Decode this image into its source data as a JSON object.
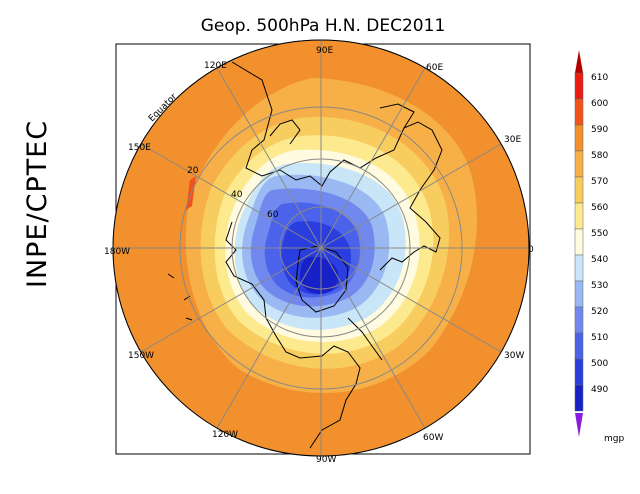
{
  "title": "Geop. 500hPa H.N. DEC2011",
  "agency": "INPE/CPTEC",
  "longitude_labels": [
    {
      "text": "90E",
      "lon": 90
    },
    {
      "text": "60E",
      "lon": 60
    },
    {
      "text": "30E",
      "lon": 30
    },
    {
      "text": "0",
      "lon": 0
    },
    {
      "text": "30W",
      "lon": -30
    },
    {
      "text": "60W",
      "lon": -60
    },
    {
      "text": "90W",
      "lon": -90
    },
    {
      "text": "120W",
      "lon": -120
    },
    {
      "text": "150W",
      "lon": -150
    },
    {
      "text": "180W",
      "lon": 180
    },
    {
      "text": "150E",
      "lon": 150
    },
    {
      "text": "120E",
      "lon": 120
    }
  ],
  "latitude_labels": [
    {
      "text": "Equator",
      "lat": 0
    },
    {
      "text": "20",
      "lat": 20
    },
    {
      "text": "40",
      "lat": 40
    },
    {
      "text": "60",
      "lat": 60
    }
  ],
  "colorbar": {
    "unit": "mgp",
    "levels": [
      {
        "label": "610",
        "color": "#ee1c10"
      },
      {
        "label": "600",
        "color": "#f4521c"
      },
      {
        "label": "590",
        "color": "#f2902d"
      },
      {
        "label": "580",
        "color": "#f7b048"
      },
      {
        "label": "570",
        "color": "#f8cd60"
      },
      {
        "label": "560",
        "color": "#fde98e"
      },
      {
        "label": "550",
        "color": "#fffbe0"
      },
      {
        "label": "540",
        "color": "#c8e6f8"
      },
      {
        "label": "530",
        "color": "#9ab8f2"
      },
      {
        "label": "520",
        "color": "#7188ef"
      },
      {
        "label": "510",
        "color": "#4a63ea"
      },
      {
        "label": "500",
        "color": "#2a3ee0"
      },
      {
        "label": "490",
        "color": "#1820c8"
      }
    ],
    "top_arrow_color": "#b00000",
    "bottom_arrow_color": "#8a1ce0"
  }
}
